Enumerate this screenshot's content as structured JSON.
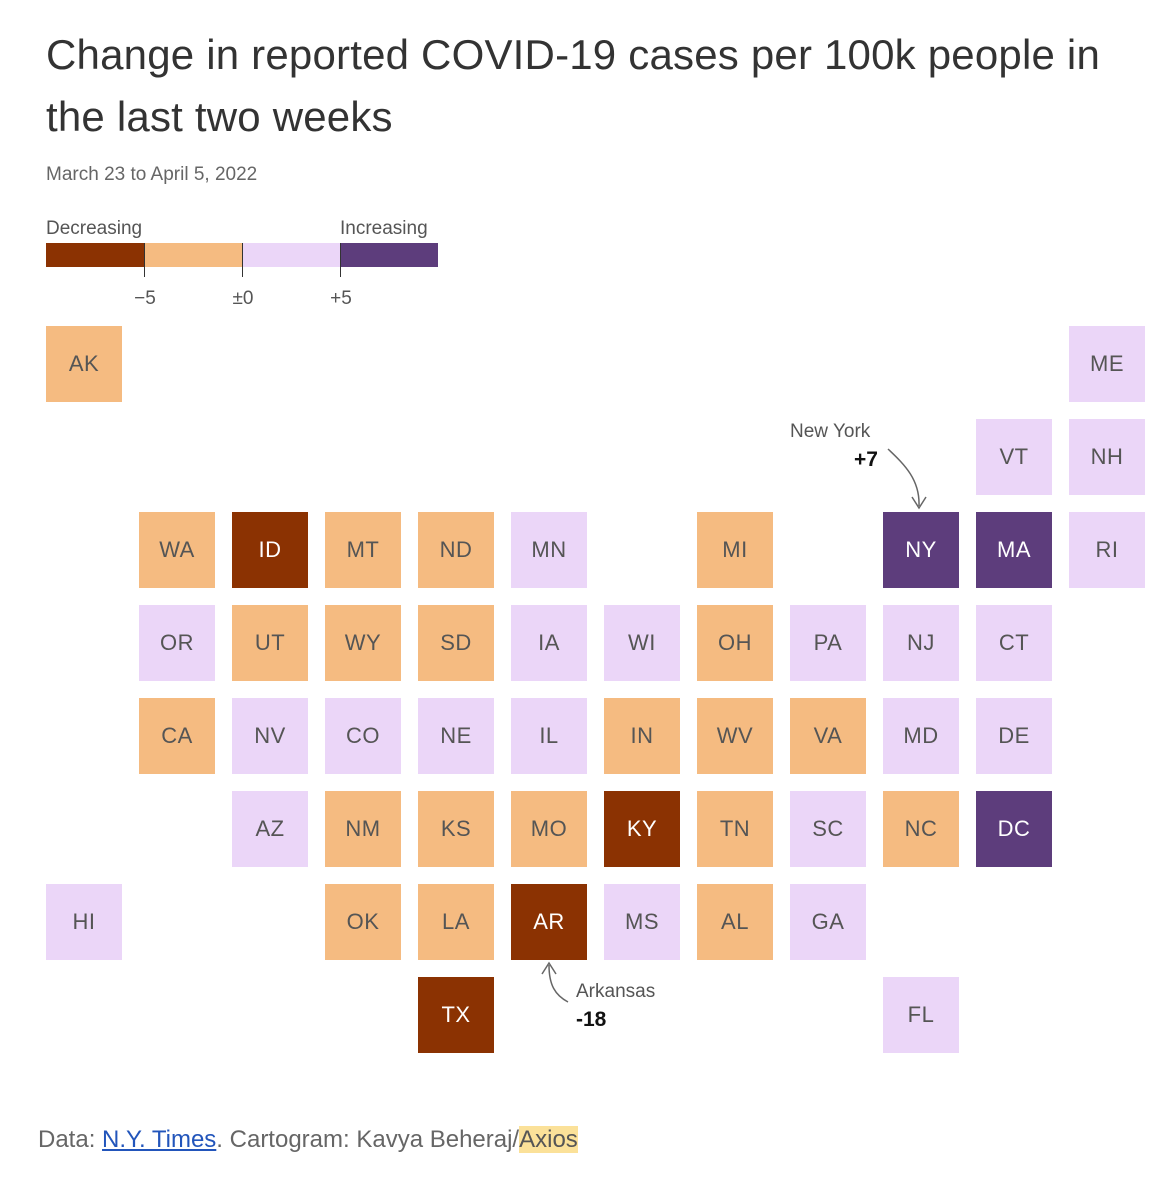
{
  "title": "Change in reported COVID-19 cases per 100k people in the last two weeks",
  "subtitle": "March 23 to April 5, 2022",
  "legend": {
    "low_label": "Decreasing",
    "high_label": "Increasing",
    "colors": [
      "#8b3202",
      "#f5bb81",
      "#ebd6f8",
      "#5d3d7c"
    ],
    "ticks": [
      "−5",
      "±0",
      "+5"
    ]
  },
  "chart_data": {
    "type": "tile-cartogram",
    "bin_thresholds": [
      -5,
      0,
      5
    ],
    "bin_colors": [
      "#8b3202",
      "#f5bb81",
      "#ebd6f8",
      "#5d3d7c"
    ],
    "states": [
      {
        "abbr": "AK",
        "row": 0,
        "col": 0,
        "bin": 1
      },
      {
        "abbr": "ME",
        "row": 0,
        "col": 11,
        "bin": 2
      },
      {
        "abbr": "VT",
        "row": 1,
        "col": 10,
        "bin": 2
      },
      {
        "abbr": "NH",
        "row": 1,
        "col": 11,
        "bin": 2
      },
      {
        "abbr": "WA",
        "row": 2,
        "col": 1,
        "bin": 1
      },
      {
        "abbr": "ID",
        "row": 2,
        "col": 2,
        "bin": 0
      },
      {
        "abbr": "MT",
        "row": 2,
        "col": 3,
        "bin": 1
      },
      {
        "abbr": "ND",
        "row": 2,
        "col": 4,
        "bin": 1
      },
      {
        "abbr": "MN",
        "row": 2,
        "col": 5,
        "bin": 2
      },
      {
        "abbr": "MI",
        "row": 2,
        "col": 7,
        "bin": 1
      },
      {
        "abbr": "NY",
        "row": 2,
        "col": 9,
        "bin": 3,
        "value": 7
      },
      {
        "abbr": "MA",
        "row": 2,
        "col": 10,
        "bin": 3
      },
      {
        "abbr": "RI",
        "row": 2,
        "col": 11,
        "bin": 2
      },
      {
        "abbr": "OR",
        "row": 3,
        "col": 1,
        "bin": 2
      },
      {
        "abbr": "UT",
        "row": 3,
        "col": 2,
        "bin": 1
      },
      {
        "abbr": "WY",
        "row": 3,
        "col": 3,
        "bin": 1
      },
      {
        "abbr": "SD",
        "row": 3,
        "col": 4,
        "bin": 1
      },
      {
        "abbr": "IA",
        "row": 3,
        "col": 5,
        "bin": 2
      },
      {
        "abbr": "WI",
        "row": 3,
        "col": 6,
        "bin": 2
      },
      {
        "abbr": "OH",
        "row": 3,
        "col": 7,
        "bin": 1
      },
      {
        "abbr": "PA",
        "row": 3,
        "col": 8,
        "bin": 2
      },
      {
        "abbr": "NJ",
        "row": 3,
        "col": 9,
        "bin": 2
      },
      {
        "abbr": "CT",
        "row": 3,
        "col": 10,
        "bin": 2
      },
      {
        "abbr": "CA",
        "row": 4,
        "col": 1,
        "bin": 1
      },
      {
        "abbr": "NV",
        "row": 4,
        "col": 2,
        "bin": 2
      },
      {
        "abbr": "CO",
        "row": 4,
        "col": 3,
        "bin": 2
      },
      {
        "abbr": "NE",
        "row": 4,
        "col": 4,
        "bin": 2
      },
      {
        "abbr": "IL",
        "row": 4,
        "col": 5,
        "bin": 2
      },
      {
        "abbr": "IN",
        "row": 4,
        "col": 6,
        "bin": 1
      },
      {
        "abbr": "WV",
        "row": 4,
        "col": 7,
        "bin": 1
      },
      {
        "abbr": "VA",
        "row": 4,
        "col": 8,
        "bin": 1
      },
      {
        "abbr": "MD",
        "row": 4,
        "col": 9,
        "bin": 2
      },
      {
        "abbr": "DE",
        "row": 4,
        "col": 10,
        "bin": 2
      },
      {
        "abbr": "AZ",
        "row": 5,
        "col": 2,
        "bin": 2
      },
      {
        "abbr": "NM",
        "row": 5,
        "col": 3,
        "bin": 1
      },
      {
        "abbr": "KS",
        "row": 5,
        "col": 4,
        "bin": 1
      },
      {
        "abbr": "MO",
        "row": 5,
        "col": 5,
        "bin": 1
      },
      {
        "abbr": "KY",
        "row": 5,
        "col": 6,
        "bin": 0
      },
      {
        "abbr": "TN",
        "row": 5,
        "col": 7,
        "bin": 1
      },
      {
        "abbr": "SC",
        "row": 5,
        "col": 8,
        "bin": 2
      },
      {
        "abbr": "NC",
        "row": 5,
        "col": 9,
        "bin": 1
      },
      {
        "abbr": "DC",
        "row": 5,
        "col": 10,
        "bin": 3
      },
      {
        "abbr": "HI",
        "row": 6,
        "col": 0,
        "bin": 2
      },
      {
        "abbr": "OK",
        "row": 6,
        "col": 3,
        "bin": 1
      },
      {
        "abbr": "LA",
        "row": 6,
        "col": 4,
        "bin": 1
      },
      {
        "abbr": "AR",
        "row": 6,
        "col": 5,
        "bin": 0,
        "value": -18
      },
      {
        "abbr": "MS",
        "row": 6,
        "col": 6,
        "bin": 2
      },
      {
        "abbr": "AL",
        "row": 6,
        "col": 7,
        "bin": 1
      },
      {
        "abbr": "GA",
        "row": 6,
        "col": 8,
        "bin": 2
      },
      {
        "abbr": "TX",
        "row": 7,
        "col": 4,
        "bin": 0
      },
      {
        "abbr": "FL",
        "row": 7,
        "col": 9,
        "bin": 2
      }
    ]
  },
  "annotations": {
    "ny": {
      "name": "New York",
      "value": "+7"
    },
    "ar": {
      "name": "Arkansas",
      "value": "-18"
    }
  },
  "footer": {
    "prefix": "Data: ",
    "source_link": "N.Y. Times",
    "middle": ". Cartogram: Kavya Beheraj/",
    "brand": "Axios"
  }
}
